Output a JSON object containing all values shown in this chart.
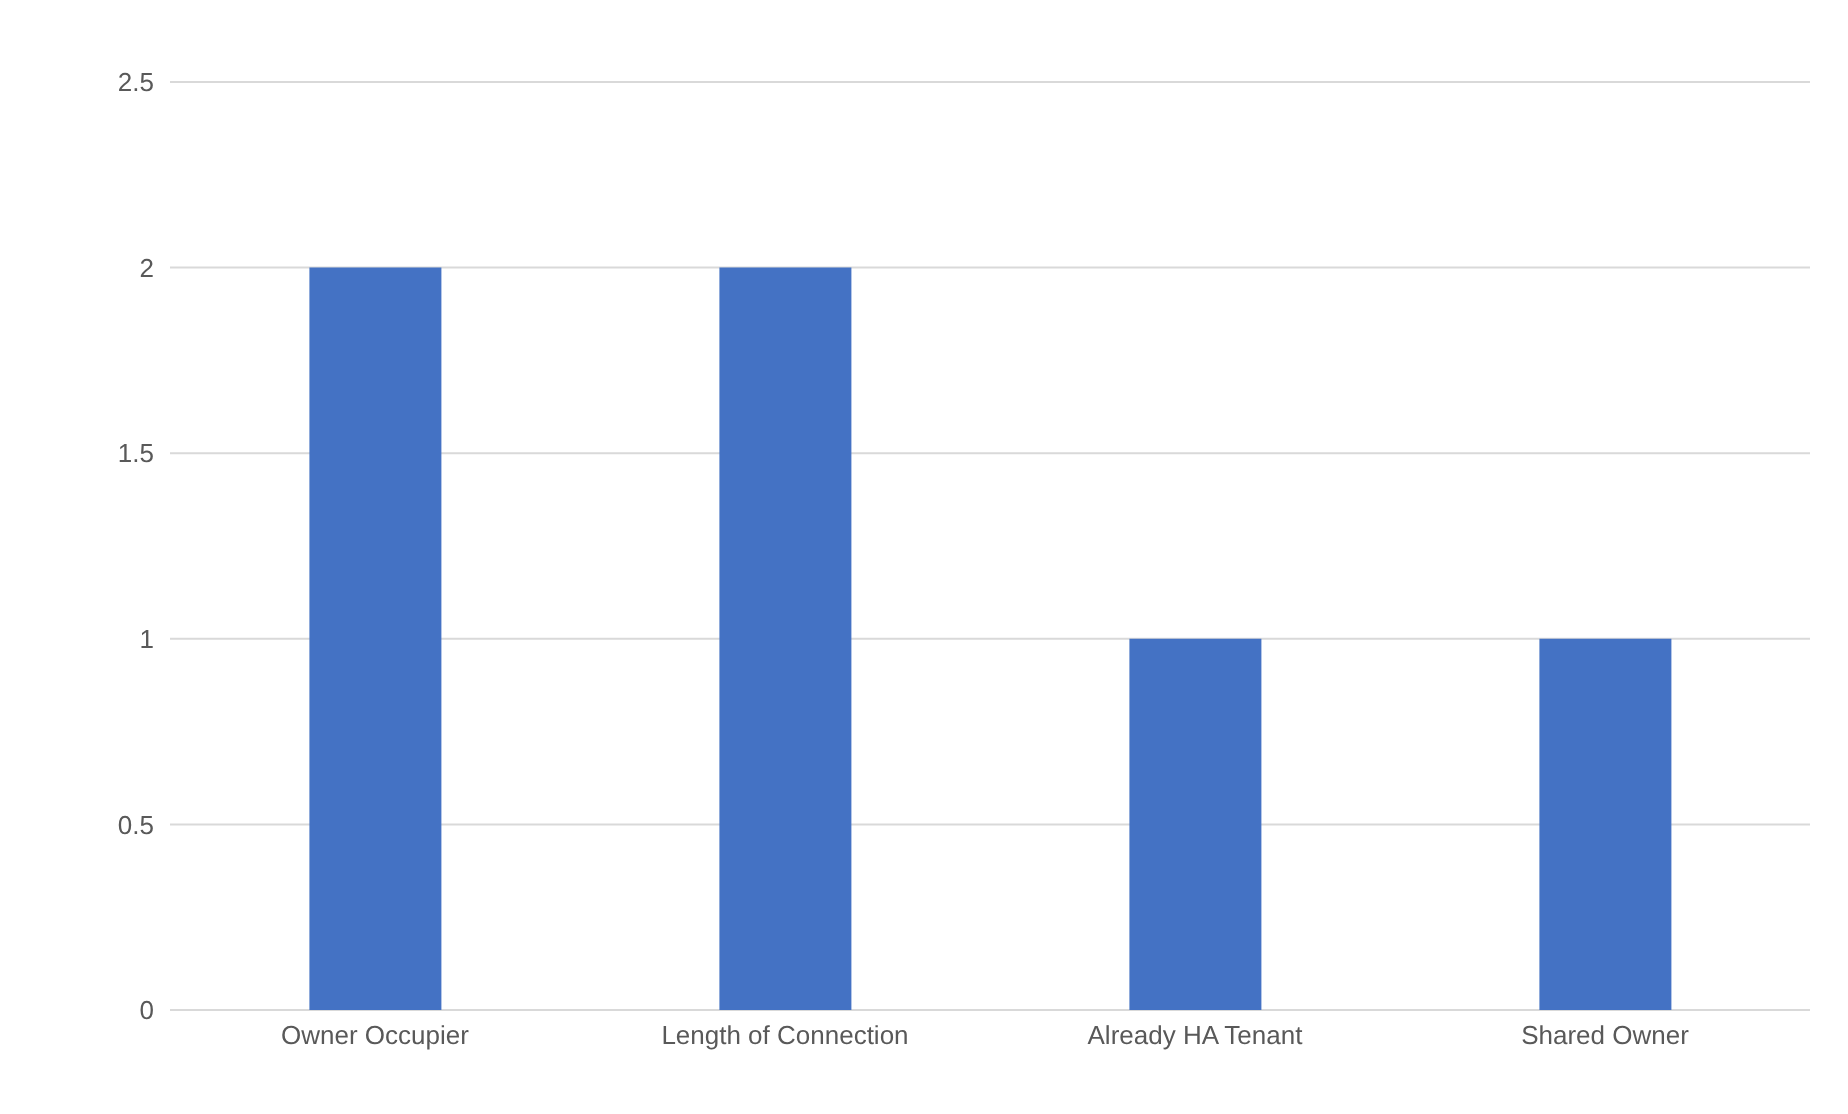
{
  "chart_data": {
    "type": "bar",
    "categories": [
      "Owner Occupier",
      "Length of Connection",
      "Already HA Tenant",
      "Shared Owner"
    ],
    "values": [
      2,
      2,
      1,
      1
    ],
    "color": "#4472c4",
    "ylim": [
      0,
      2.5
    ],
    "yticks": [
      0,
      0.5,
      1,
      1.5,
      2,
      2.5
    ],
    "grid": "y"
  }
}
